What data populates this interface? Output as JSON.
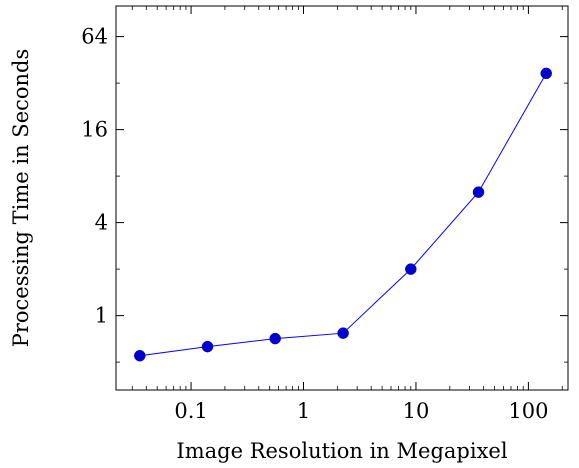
{
  "chart_data": {
    "type": "line",
    "xlabel": "Image Resolution in Megapixel",
    "ylabel": "Processing Time in Seconds",
    "xscale": "log",
    "yscale": "log2",
    "xlim": [
      0.0215,
      225
    ],
    "ylim": [
      0.33,
      101
    ],
    "x_ticks": [
      {
        "value": 0.1,
        "label": "0.1"
      },
      {
        "value": 1,
        "label": "1"
      },
      {
        "value": 10,
        "label": "10"
      },
      {
        "value": 100,
        "label": "100"
      }
    ],
    "y_ticks": [
      {
        "value": 1,
        "label": "1"
      },
      {
        "value": 4,
        "label": "4"
      },
      {
        "value": 16,
        "label": "16"
      },
      {
        "value": 64,
        "label": "64"
      }
    ],
    "grid": false,
    "series": [
      {
        "color": "#0000ff",
        "marker_color": "#0000cc",
        "x": [
          0.035,
          0.14,
          0.56,
          2.25,
          9,
          36,
          144
        ],
        "y": [
          0.55,
          0.63,
          0.71,
          0.77,
          2.0,
          6.3,
          37
        ]
      }
    ]
  }
}
